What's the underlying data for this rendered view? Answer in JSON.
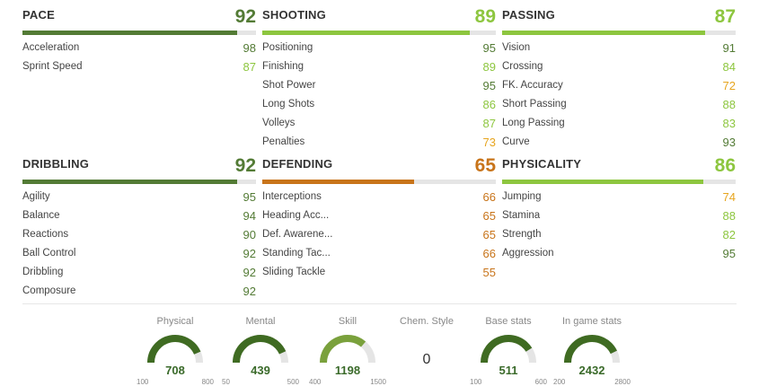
{
  "colors": {
    "dark_green": "#537b35",
    "light_green": "#8dc63f",
    "orange": "#c8741a",
    "yellow_orange": "#e7a51f",
    "track": "#e5e5e5"
  },
  "categories": [
    {
      "name": "PACE",
      "value": 92,
      "stats": [
        {
          "name": "Acceleration",
          "value": 98
        },
        {
          "name": "Sprint Speed",
          "value": 87
        }
      ]
    },
    {
      "name": "SHOOTING",
      "value": 89,
      "stats": [
        {
          "name": "Positioning",
          "value": 95
        },
        {
          "name": "Finishing",
          "value": 89
        },
        {
          "name": "Shot Power",
          "value": 95
        },
        {
          "name": "Long Shots",
          "value": 86
        },
        {
          "name": "Volleys",
          "value": 87
        },
        {
          "name": "Penalties",
          "value": 73
        }
      ]
    },
    {
      "name": "PASSING",
      "value": 87,
      "stats": [
        {
          "name": "Vision",
          "value": 91
        },
        {
          "name": "Crossing",
          "value": 84
        },
        {
          "name": "FK. Accuracy",
          "value": 72
        },
        {
          "name": "Short Passing",
          "value": 88
        },
        {
          "name": "Long Passing",
          "value": 83
        },
        {
          "name": "Curve",
          "value": 93
        }
      ]
    },
    {
      "name": "DRIBBLING",
      "value": 92,
      "stats": [
        {
          "name": "Agility",
          "value": 95
        },
        {
          "name": "Balance",
          "value": 94
        },
        {
          "name": "Reactions",
          "value": 90
        },
        {
          "name": "Ball Control",
          "value": 92
        },
        {
          "name": "Dribbling",
          "value": 92
        },
        {
          "name": "Composure",
          "value": 92
        }
      ]
    },
    {
      "name": "DEFENDING",
      "value": 65,
      "stats": [
        {
          "name": "Interceptions",
          "value": 66
        },
        {
          "name": "Heading Acc...",
          "value": 65
        },
        {
          "name": "Def. Awarene...",
          "value": 65
        },
        {
          "name": "Standing Tac...",
          "value": 66
        },
        {
          "name": "Sliding Tackle",
          "value": 55
        }
      ]
    },
    {
      "name": "PHYSICALITY",
      "value": 86,
      "stats": [
        {
          "name": "Jumping",
          "value": 74
        },
        {
          "name": "Stamina",
          "value": 88
        },
        {
          "name": "Strength",
          "value": 82
        },
        {
          "name": "Aggression",
          "value": 95
        }
      ]
    }
  ],
  "summary": [
    {
      "label": "Physical",
      "value": 708,
      "min": 100,
      "max": 800
    },
    {
      "label": "Mental",
      "value": 439,
      "min": 50,
      "max": 500
    },
    {
      "label": "Skill",
      "value": 1198,
      "min": 400,
      "max": 1500
    },
    {
      "label": "Chem. Style",
      "value": "0"
    },
    {
      "label": "Base stats",
      "value": 511,
      "min": 100,
      "max": 600
    },
    {
      "label": "In game stats",
      "value": 2432,
      "min": 200,
      "max": 2800
    }
  ]
}
